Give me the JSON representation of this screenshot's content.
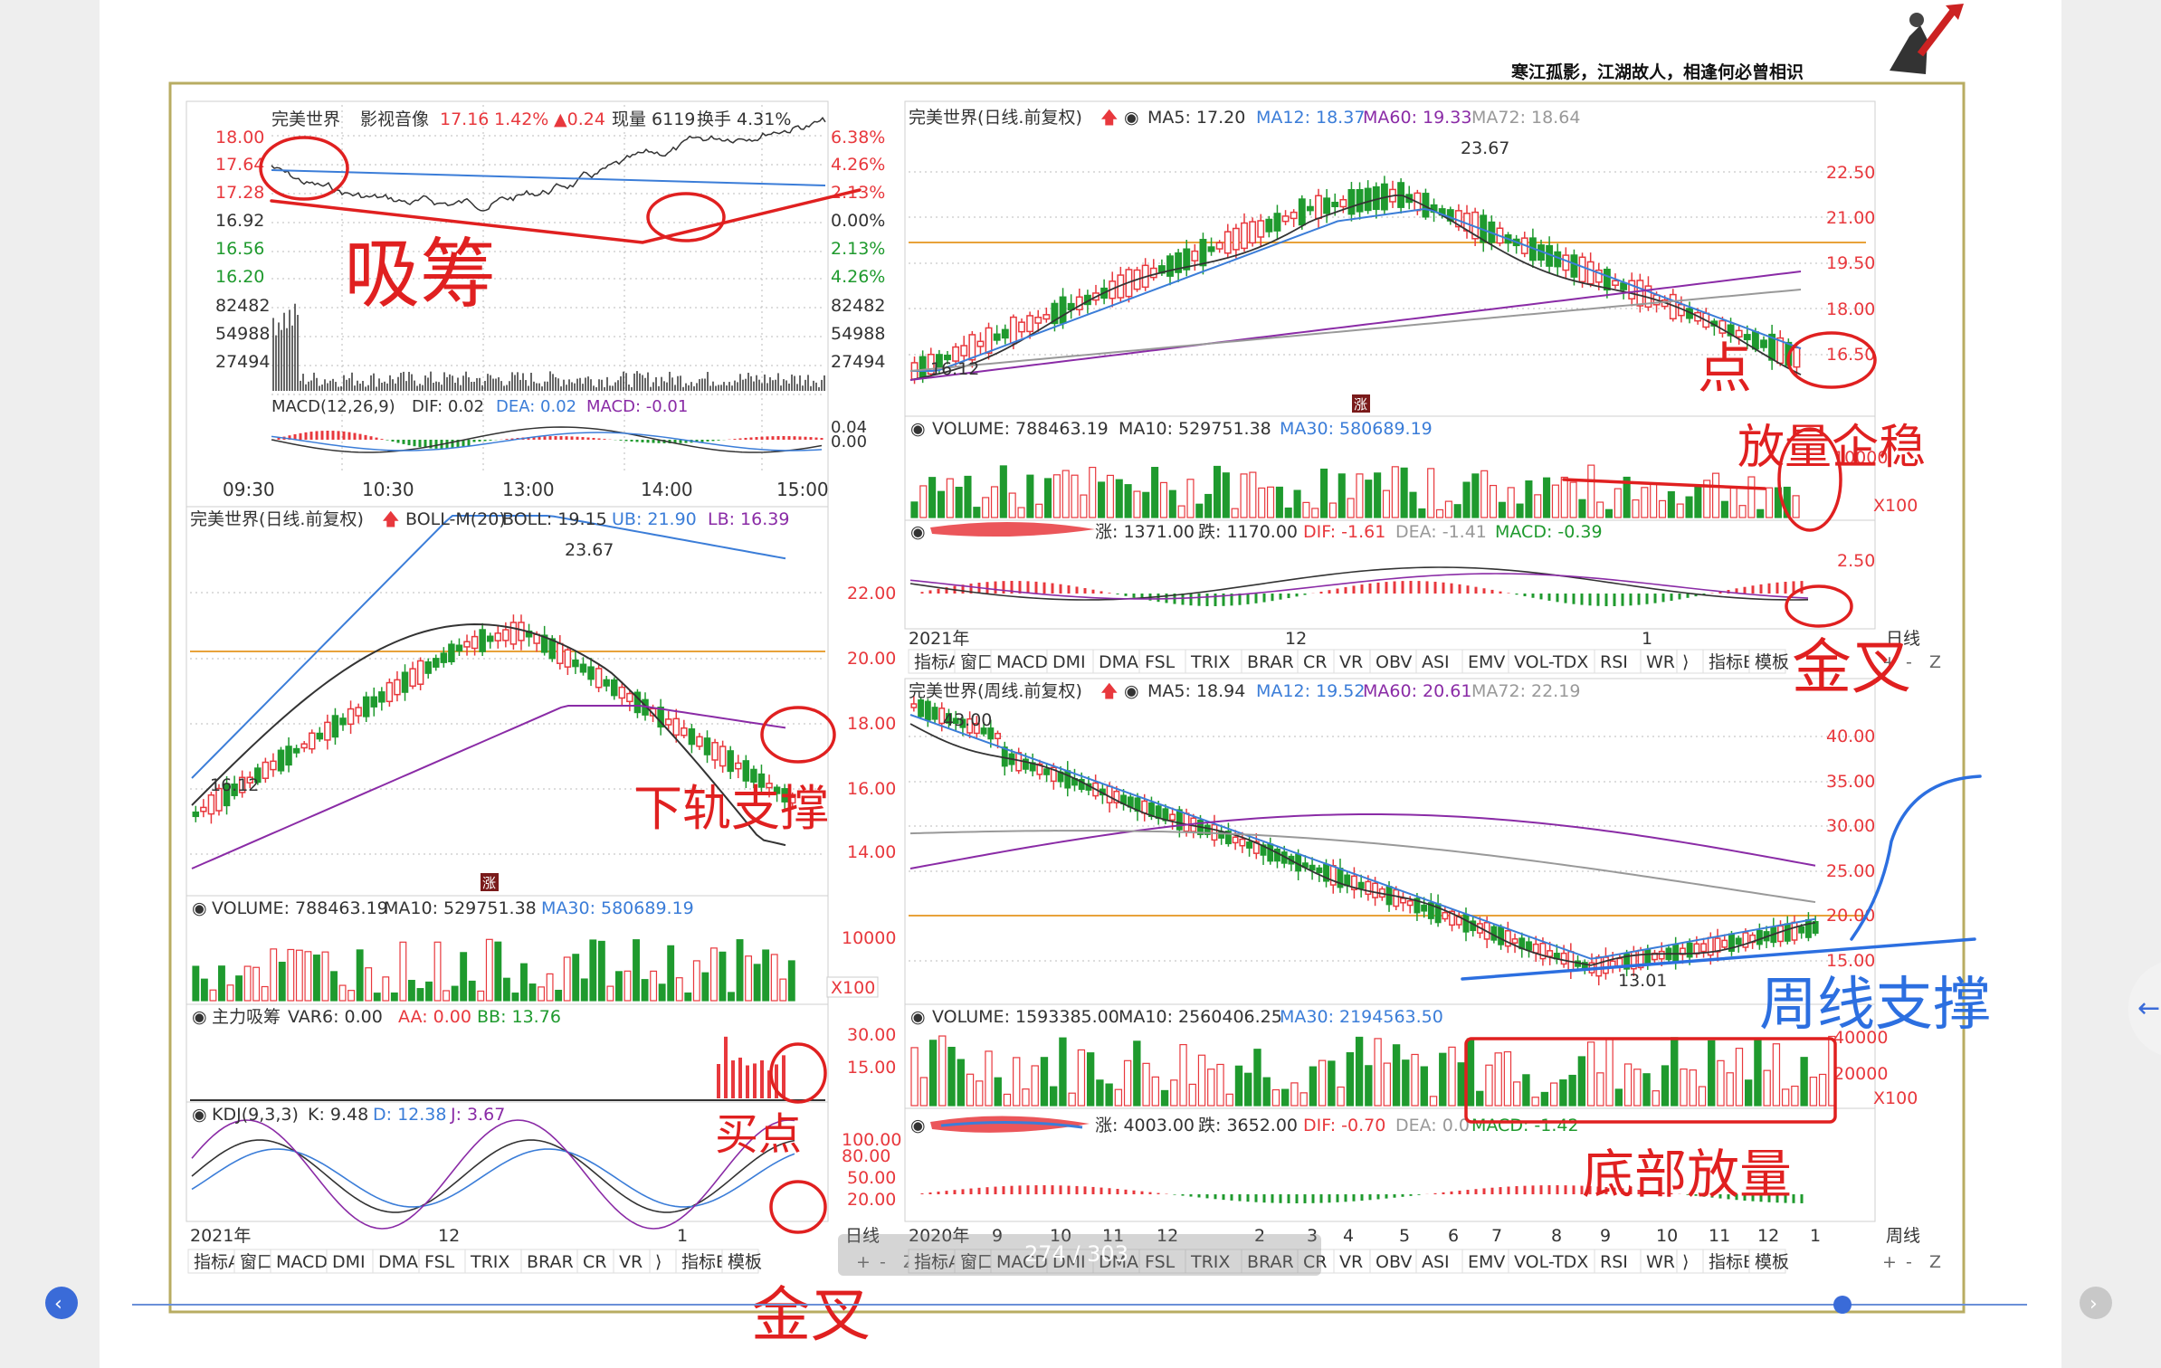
{
  "header": {
    "motto": "寒江孤影，江湖故人，相逢何必曾相识"
  },
  "intraday": {
    "name": "完美世界",
    "sector": "影视音像",
    "price": "17.16",
    "pct": "1.42%",
    "change": "▲0.24",
    "volume_label": "现量 6119",
    "turnover_label": "换手 4.31%",
    "left_ticks": [
      "18.00",
      "17.64",
      "17.28",
      "16.92",
      "16.56",
      "16.20",
      "82482",
      "54988",
      "27494"
    ],
    "right_ticks": [
      "6.38%",
      "4.26%",
      "2.13%",
      "0.00%",
      "2.13%",
      "4.26%",
      "82482",
      "54988",
      "27494"
    ],
    "macd_label": "MACD(12,26,9)",
    "dif": "DIF: 0.02",
    "dea": "DEA: 0.02",
    "macd": "MACD: -0.01",
    "macd_right_ticks": [
      "0.04",
      "0.00"
    ],
    "time_ticks": [
      "09:30",
      "10:30",
      "13:00",
      "14:00",
      "15:00"
    ]
  },
  "daily_boll": {
    "title": "完美世界(日线.前复权)",
    "ind": "BOLL-M(20)",
    "boll": "BOLL: 19.15",
    "ub": "UB: 21.90",
    "lb": "LB: 16.39",
    "high_label": "23.67",
    "low_label": "16.12",
    "y_ticks": [
      "22.00",
      "20.00",
      "18.00",
      "16.00",
      "14.00"
    ],
    "badge": "涨",
    "volume_header": "VOLUME: 788463.19",
    "vol_ma10": "MA10: 529751.38",
    "vol_ma30": "MA30: 580689.19",
    "vol_tick": "10000",
    "vol_unit": "X100",
    "zl_header": "主力吸筹",
    "zl_var": "VAR6: 0.00",
    "zl_aa": "AA: 0.00",
    "zl_bb": "BB: 13.76",
    "zl_ticks": [
      "30.00",
      "15.00"
    ],
    "kdj_header": "KDJ(9,3,3)",
    "kdj_k": "K: 9.48",
    "kdj_d": "D: 12.38",
    "kdj_j": "J: 3.67",
    "kdj_ticks": [
      "100.00",
      "80.00",
      "50.00",
      "20.00"
    ],
    "x_labels": [
      "2021年",
      "12",
      "1"
    ],
    "period": "日线"
  },
  "daily_ma": {
    "title": "完美世界(日线.前复权)",
    "ma5": "MA5: 17.20",
    "ma12": "MA12: 18.37",
    "ma60": "MA60: 19.33",
    "ma72": "MA72: 18.64",
    "high_label": "23.67",
    "low_label": "16.12",
    "y_ticks": [
      "22.50",
      "21.00",
      "19.50",
      "18.00",
      "16.50"
    ],
    "badge": "涨",
    "volume_header": "VOLUME: 788463.19",
    "vol_ma10": "MA10: 529751.38",
    "vol_ma30": "MA30: 580689.19",
    "vol_tick": "10000",
    "vol_unit": "X100",
    "macd_zhang": "涨: 1371.00",
    "macd_die": "跌: 1170.00",
    "macd_dif": "DIF: -1.61",
    "macd_dea": "DEA: -1.41",
    "macd_val": "MACD: -0.39",
    "macd_tick": "2.50",
    "x_labels": [
      "2021年",
      "12",
      "1"
    ],
    "period": "日线"
  },
  "weekly": {
    "title": "完美世界(周线.前复权)",
    "ma5": "MA5: 18.94",
    "ma12": "MA12: 19.52",
    "ma60": "MA60: 20.61",
    "ma72": "MA72: 22.19",
    "high_label": "43.00",
    "low_label": "13.01",
    "y_ticks": [
      "40.00",
      "35.00",
      "30.00",
      "25.00",
      "20.00",
      "15.00"
    ],
    "volume_header": "VOLUME: 1593385.00",
    "vol_ma10": "MA10: 2560406.25",
    "vol_ma30": "MA30: 2194563.50",
    "vol_ticks": [
      "40000",
      "20000"
    ],
    "vol_unit": "X100",
    "macd_zhang": "涨: 4003.00",
    "macd_die": "跌: 3652.00",
    "macd_dif": "DIF: -0.70",
    "macd_dea": "DEA: 0.0",
    "macd_val": "MACD: -1.42",
    "x_labels": [
      "2020年",
      "9",
      "10",
      "11",
      "12",
      "2",
      "3",
      "4",
      "5",
      "6",
      "7",
      "8",
      "9",
      "10",
      "11",
      "12",
      "1"
    ],
    "period": "周线"
  },
  "tabs_daily": [
    "指标A",
    "窗口",
    "MACD",
    "DMI",
    "DMA",
    "FSL",
    "TRIX",
    "BRAR",
    "CR",
    "VR",
    "OBV",
    "ASI",
    "EMV",
    "VOL-TDX",
    "RSI",
    "WR",
    "⟩",
    "指标B",
    "模板"
  ],
  "tabs_left": [
    "指标A",
    "窗口",
    "MACD",
    "DMI",
    "DMA",
    "FSL",
    "TRIX",
    "BRAR",
    "CR",
    "VR",
    "⟩",
    "指标B",
    "模板"
  ],
  "tab_ctrls": [
    "+",
    "-",
    "Z"
  ],
  "annotations": {
    "xichou": "吸筹",
    "dian": "点",
    "fangliang_qizhang": "放量企稳",
    "jincha": "金叉",
    "xiagui_zhicheng": "下轨支撑",
    "zhouxian_zhicheng": "周线支撑",
    "maidian": "买点",
    "dibu_fangliang": "底部放量",
    "jincha2": "金叉"
  },
  "pager": {
    "text": "274 / 303"
  },
  "colors": {
    "up": "#e8383d",
    "down": "#1f9a2e",
    "blue": "#3b7dd8",
    "purple": "#8a2ba6",
    "gray": "#999999",
    "orange": "#e8a23a",
    "pen_red": "#e02020",
    "pen_blue": "#2c6fe0"
  }
}
